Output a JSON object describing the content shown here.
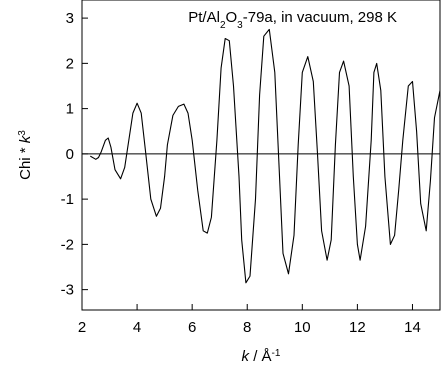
{
  "chart_data": {
    "type": "line",
    "title": {
      "prefix": "Pt/Al",
      "sub1": "2",
      "mid": "O",
      "sub2": "3",
      "suffix": "-79a, in vacuum, 298 K"
    },
    "xlabel": {
      "var": "k",
      "sep": " / Å",
      "sup": "-1"
    },
    "ylabel": {
      "base": "Chi * ",
      "var": "k",
      "sup": "3"
    },
    "xlim": [
      2,
      15
    ],
    "ylim": [
      -3.45,
      3.4
    ],
    "xticks": [
      2,
      4,
      6,
      8,
      10,
      12,
      14
    ],
    "yticks": [
      -3,
      -2,
      -1,
      0,
      1,
      2,
      3
    ],
    "reference_line_y": 0,
    "series": [
      {
        "x": [
          2.3,
          2.5,
          2.6,
          2.7,
          2.85,
          2.95,
          3.05,
          3.2,
          3.4,
          3.55,
          3.7,
          3.85,
          4.0,
          4.15,
          4.3,
          4.5,
          4.7,
          4.85,
          5.0,
          5.1,
          5.3,
          5.5,
          5.7,
          5.85,
          6.0,
          6.2,
          6.4,
          6.55,
          6.7,
          6.9,
          7.05,
          7.2,
          7.35,
          7.5,
          7.7,
          7.8,
          7.95,
          8.1,
          8.3,
          8.45,
          8.6,
          8.8,
          9.0,
          9.15,
          9.3,
          9.5,
          9.7,
          9.85,
          10.0,
          10.2,
          10.4,
          10.55,
          10.7,
          10.9,
          11.05,
          11.2,
          11.35,
          11.5,
          11.7,
          11.85,
          12.0,
          12.1,
          12.3,
          12.5,
          12.6,
          12.7,
          12.85,
          13.0,
          13.2,
          13.35,
          13.5,
          13.65,
          13.85,
          14.0,
          14.15,
          14.3,
          14.5,
          14.65,
          14.8,
          15.0
        ],
        "y": [
          -0.05,
          -0.12,
          -0.08,
          0.05,
          0.3,
          0.35,
          0.15,
          -0.35,
          -0.55,
          -0.3,
          0.3,
          0.9,
          1.12,
          0.9,
          0.1,
          -1.0,
          -1.38,
          -1.2,
          -0.5,
          0.2,
          0.85,
          1.05,
          1.1,
          0.9,
          0.3,
          -0.8,
          -1.7,
          -1.75,
          -1.4,
          0.3,
          1.9,
          2.55,
          2.5,
          1.5,
          -0.5,
          -1.9,
          -2.85,
          -2.7,
          -1.0,
          1.3,
          2.6,
          2.75,
          1.8,
          -0.2,
          -2.2,
          -2.65,
          -1.8,
          0.2,
          1.8,
          2.15,
          1.6,
          0.0,
          -1.7,
          -2.35,
          -1.9,
          0.2,
          1.8,
          2.05,
          1.5,
          -0.5,
          -2.0,
          -2.35,
          -1.6,
          0.3,
          1.8,
          2.0,
          1.4,
          -0.5,
          -2.0,
          -1.8,
          -0.8,
          0.3,
          1.5,
          1.6,
          0.5,
          -1.1,
          -1.7,
          -0.6,
          0.8,
          1.4
        ]
      }
    ]
  }
}
